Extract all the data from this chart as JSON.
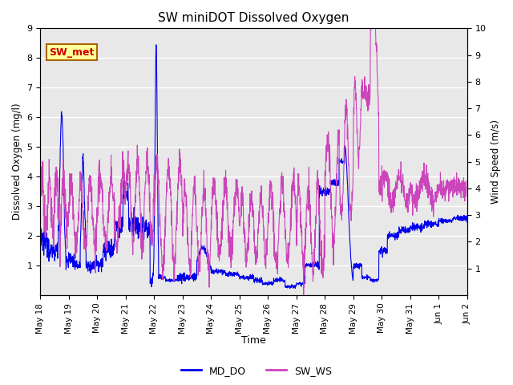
{
  "title": "SW miniDOT Dissolved Oxygen",
  "xlabel": "Time",
  "ylabel_left": "Dissolved Oxygen (mg/l)",
  "ylabel_right": "Wind Speed (m/s)",
  "annotation_text": "SW_met",
  "annotation_color": "#cc0000",
  "annotation_bg": "#ffff99",
  "annotation_border": "#aa6600",
  "ylim_left": [
    0.0,
    9.0
  ],
  "ylim_right": [
    0.0,
    10.0
  ],
  "yticks_left": [
    1.0,
    2.0,
    3.0,
    4.0,
    5.0,
    6.0,
    7.0,
    8.0,
    9.0
  ],
  "yticks_right": [
    1.0,
    2.0,
    3.0,
    4.0,
    5.0,
    6.0,
    7.0,
    8.0,
    9.0,
    10.0
  ],
  "color_do": "#0000ee",
  "color_ws": "#cc44bb",
  "legend_labels": [
    "MD_DO",
    "SW_WS"
  ],
  "background_color": "#e8e8e8",
  "grid_color": "#ffffff",
  "xtick_labels": [
    "May 18",
    "May 19",
    "May 20",
    "May 21",
    "May 22",
    "May 23",
    "May 24",
    "May 25",
    "May 26",
    "May 27",
    "May 28",
    "May 29",
    "May 30",
    "May 31",
    "Jun 1",
    "Jun 2"
  ]
}
